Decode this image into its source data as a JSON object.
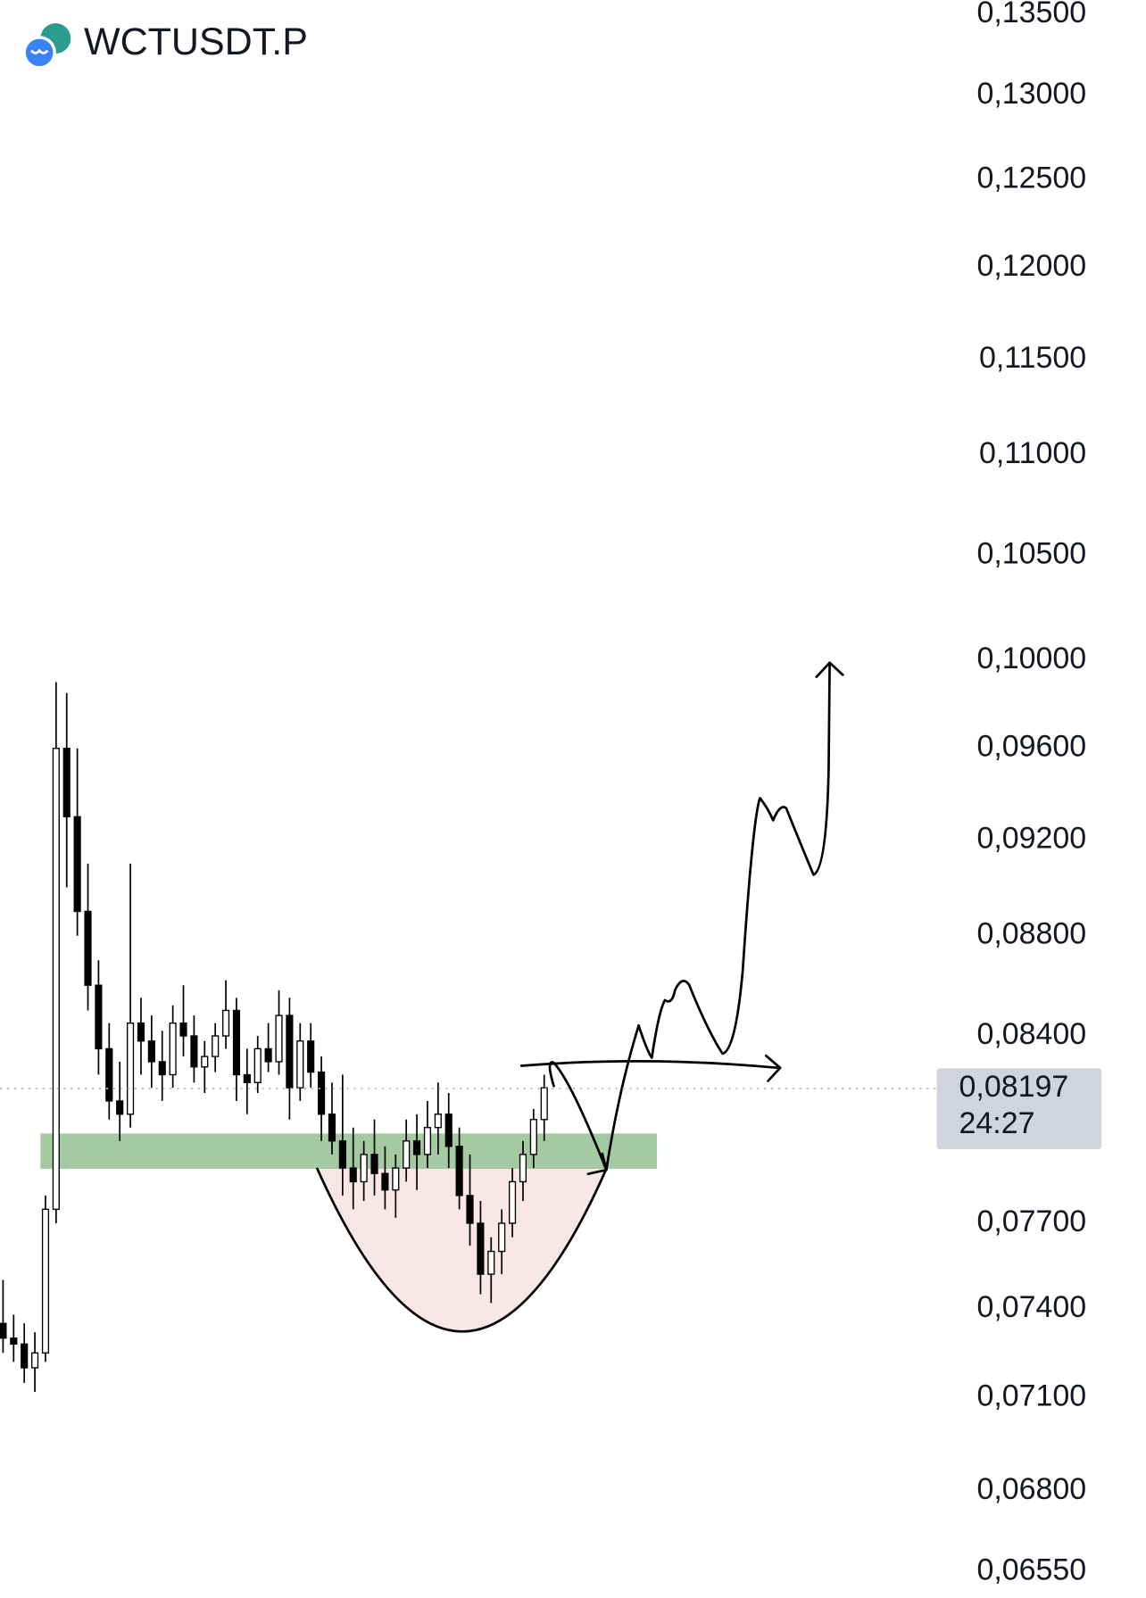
{
  "chart_data": {
    "type": "candlestick",
    "title": "WCTUSDT.P",
    "log": true,
    "ylim": [
      0.0647,
      0.1359
    ],
    "yticks": [
      {
        "value": 0.135,
        "label": "0,13500"
      },
      {
        "value": 0.13,
        "label": "0,13000"
      },
      {
        "value": 0.125,
        "label": "0,12500"
      },
      {
        "value": 0.12,
        "label": "0,12000"
      },
      {
        "value": 0.115,
        "label": "0,11500"
      },
      {
        "value": 0.11,
        "label": "0,11000"
      },
      {
        "value": 0.105,
        "label": "0,10500"
      },
      {
        "value": 0.1,
        "label": "0,10000"
      },
      {
        "value": 0.096,
        "label": "0,09600"
      },
      {
        "value": 0.092,
        "label": "0,09200"
      },
      {
        "value": 0.088,
        "label": "0,08800"
      },
      {
        "value": 0.084,
        "label": "0,08400"
      },
      {
        "value": 0.077,
        "label": "0,07700"
      },
      {
        "value": 0.074,
        "label": "0,07400"
      },
      {
        "value": 0.071,
        "label": "0,07100"
      },
      {
        "value": 0.068,
        "label": "0,06800"
      },
      {
        "value": 0.0655,
        "label": "0,06550"
      }
    ],
    "last_price": {
      "value": 0.08197,
      "label": "0,08197"
    },
    "countdown": "24:27",
    "up_color": "#ffffff",
    "down_color": "#000000",
    "open": [
      0.0735,
      0.073,
      0.0728,
      0.072,
      0.0725,
      0.0775,
      0.096,
      0.093,
      0.089,
      0.086,
      0.0835,
      0.0815,
      0.081,
      0.0845,
      0.0838,
      0.083,
      0.0825,
      0.0845,
      0.084,
      0.0828,
      0.0832,
      0.084,
      0.085,
      0.0825,
      0.0822,
      0.0835,
      0.083,
      0.0848,
      0.082,
      0.0838,
      0.0826,
      0.081,
      0.08,
      0.079,
      0.0785,
      0.0795,
      0.0788,
      0.0782,
      0.079,
      0.08,
      0.0795,
      0.0805,
      0.081,
      0.0798,
      0.078,
      0.077,
      0.0752,
      0.076,
      0.077,
      0.0785,
      0.0795,
      0.0808
    ],
    "high": [
      0.075,
      0.0738,
      0.0735,
      0.0732,
      0.078,
      0.099,
      0.0985,
      0.096,
      0.091,
      0.087,
      0.0845,
      0.083,
      0.091,
      0.0855,
      0.0848,
      0.0842,
      0.0852,
      0.086,
      0.0848,
      0.0838,
      0.0845,
      0.0862,
      0.0855,
      0.0835,
      0.084,
      0.0845,
      0.0858,
      0.0855,
      0.0845,
      0.0845,
      0.0832,
      0.0822,
      0.0825,
      0.0805,
      0.08,
      0.0808,
      0.0798,
      0.0795,
      0.0808,
      0.081,
      0.0815,
      0.0822,
      0.0818,
      0.0805,
      0.0795,
      0.0778,
      0.0765,
      0.0775,
      0.079,
      0.08,
      0.0812,
      0.0825
    ],
    "low": [
      0.0725,
      0.0722,
      0.0715,
      0.0712,
      0.0722,
      0.077,
      0.09,
      0.088,
      0.085,
      0.0825,
      0.0808,
      0.08,
      0.0805,
      0.0825,
      0.082,
      0.0815,
      0.082,
      0.0832,
      0.0822,
      0.0818,
      0.0826,
      0.0835,
      0.0815,
      0.081,
      0.0818,
      0.0826,
      0.0825,
      0.0808,
      0.0815,
      0.082,
      0.08,
      0.0795,
      0.078,
      0.0775,
      0.0778,
      0.078,
      0.0775,
      0.0772,
      0.0785,
      0.0782,
      0.079,
      0.0795,
      0.079,
      0.0775,
      0.0762,
      0.0745,
      0.0742,
      0.0752,
      0.0765,
      0.0778,
      0.079,
      0.08
    ],
    "close": [
      0.073,
      0.0728,
      0.072,
      0.0725,
      0.0775,
      0.096,
      0.093,
      0.089,
      0.086,
      0.0835,
      0.0815,
      0.081,
      0.0845,
      0.0838,
      0.083,
      0.0825,
      0.0845,
      0.084,
      0.0828,
      0.0832,
      0.084,
      0.085,
      0.0825,
      0.0822,
      0.0835,
      0.083,
      0.0848,
      0.082,
      0.0838,
      0.0826,
      0.081,
      0.08,
      0.079,
      0.0785,
      0.0795,
      0.0788,
      0.0782,
      0.079,
      0.08,
      0.0795,
      0.0805,
      0.081,
      0.0798,
      0.078,
      0.077,
      0.0752,
      0.076,
      0.077,
      0.0785,
      0.0795,
      0.0808,
      0.082
    ]
  }
}
